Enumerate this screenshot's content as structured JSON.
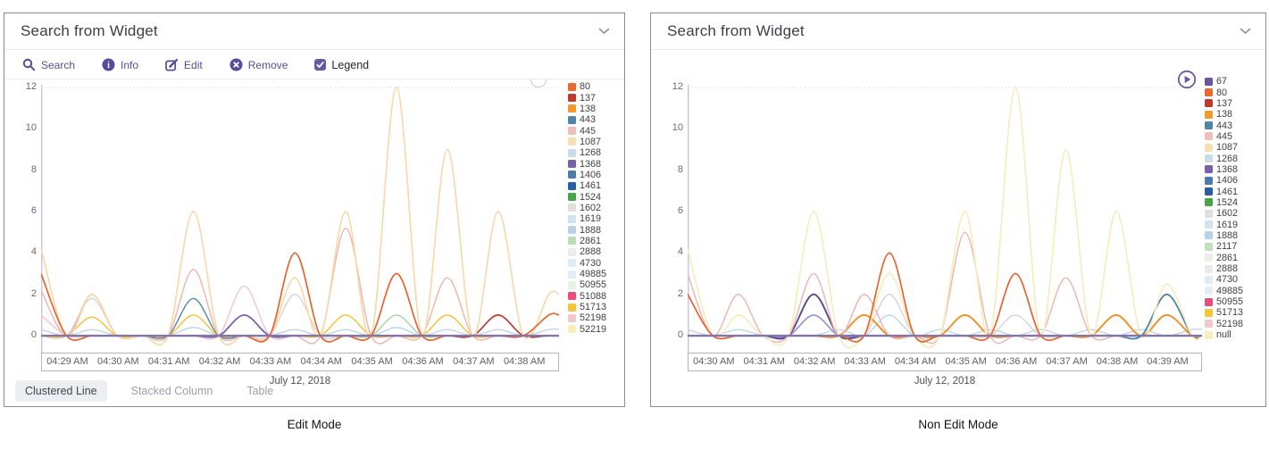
{
  "panels": [
    {
      "title": "Search from Widget",
      "caption": "Edit Mode",
      "collapse_icon": "chevron-down",
      "toolbar": {
        "actions": [
          {
            "id": "search",
            "label": "Search",
            "icon": "search-icon"
          },
          {
            "id": "info",
            "label": "Info",
            "icon": "info-icon"
          },
          {
            "id": "edit",
            "label": "Edit",
            "icon": "edit-icon"
          },
          {
            "id": "remove",
            "label": "Remove",
            "icon": "remove-icon"
          }
        ],
        "legend_toggle": {
          "label": "Legend",
          "checked": true
        }
      },
      "tabs": [
        {
          "label": "Clustered Line",
          "active": true
        },
        {
          "label": "Stacked Column",
          "active": false
        },
        {
          "label": "Table",
          "active": false
        }
      ],
      "legend_items": [
        {
          "label": "80",
          "color": "#ed6a2d"
        },
        {
          "label": "137",
          "color": "#c0392f"
        },
        {
          "label": "138",
          "color": "#f39a2b"
        },
        {
          "label": "443",
          "color": "#4e86a8"
        },
        {
          "label": "445",
          "color": "#f0bfbc"
        },
        {
          "label": "1087",
          "color": "#f8dcb2"
        },
        {
          "label": "1268",
          "color": "#c9dde9"
        },
        {
          "label": "1368",
          "color": "#7a60a8"
        },
        {
          "label": "1406",
          "color": "#4a7cad"
        },
        {
          "label": "1461",
          "color": "#2a5ca8"
        },
        {
          "label": "1524",
          "color": "#46a546"
        },
        {
          "label": "1602",
          "color": "#e2e0dd"
        },
        {
          "label": "1619",
          "color": "#cfe2ee"
        },
        {
          "label": "1888",
          "color": "#b7d3e7"
        },
        {
          "label": "2861",
          "color": "#bcdcb2"
        },
        {
          "label": "2888",
          "color": "#ecece9"
        },
        {
          "label": "4730",
          "color": "#dcebf4"
        },
        {
          "label": "49885",
          "color": "#e4eef6"
        },
        {
          "label": "50955",
          "color": "#eaf0e6"
        },
        {
          "label": "51088",
          "color": "#ea4c7d"
        },
        {
          "label": "51713",
          "color": "#f7c53a"
        },
        {
          "label": "52198",
          "color": "#f2c6ce"
        },
        {
          "label": "52219",
          "color": "#f8eeba"
        }
      ]
    },
    {
      "title": "Search from Widget",
      "caption": "Non Edit Mode",
      "collapse_icon": "chevron-down",
      "legend_items": [
        {
          "label": "67",
          "color": "#6a53a1"
        },
        {
          "label": "80",
          "color": "#ed6a2d"
        },
        {
          "label": "137",
          "color": "#c0392f"
        },
        {
          "label": "138",
          "color": "#f39a2b"
        },
        {
          "label": "443",
          "color": "#4e86a8"
        },
        {
          "label": "445",
          "color": "#f0bfbc"
        },
        {
          "label": "1087",
          "color": "#f8dcb2"
        },
        {
          "label": "1268",
          "color": "#c9dde9"
        },
        {
          "label": "1368",
          "color": "#7a60a8"
        },
        {
          "label": "1406",
          "color": "#4a7cad"
        },
        {
          "label": "1461",
          "color": "#2a5ca8"
        },
        {
          "label": "1524",
          "color": "#46a546"
        },
        {
          "label": "1602",
          "color": "#e2e0dd"
        },
        {
          "label": "1619",
          "color": "#cfe2ee"
        },
        {
          "label": "1888",
          "color": "#b7d3e7"
        },
        {
          "label": "2117",
          "color": "#c3dfb9"
        },
        {
          "label": "2861",
          "color": "#ecece9"
        },
        {
          "label": "2888",
          "color": "#e9e9e6"
        },
        {
          "label": "4730",
          "color": "#dcebf4"
        },
        {
          "label": "49885",
          "color": "#e4eef6"
        },
        {
          "label": "50955",
          "color": "#ea4c7d"
        },
        {
          "label": "51713",
          "color": "#f7c53a"
        },
        {
          "label": "52198",
          "color": "#f2c6ce"
        },
        {
          "label": "null",
          "color": "#f8eeba"
        }
      ]
    }
  ],
  "chart_data": [
    {
      "type": "line",
      "title": "",
      "x_axis_label": "July 12, 2018",
      "x_tick_labels": [
        "04:29 AM",
        "04:30 AM",
        "04:31 AM",
        "04:32 AM",
        "04:33 AM",
        "04:34 AM",
        "04:35 AM",
        "04:36 AM",
        "04:37 AM",
        "04:38 AM"
      ],
      "yticks": [
        0,
        2,
        4,
        6,
        8,
        10,
        12
      ],
      "ylim": [
        0,
        12
      ],
      "grid": "top-dotted-only",
      "legend_position": "right",
      "sample_positions_minutes": [
        -0.5,
        0,
        0.5,
        1,
        1.5,
        2,
        2.5,
        3,
        3.5,
        4,
        4.5,
        5,
        5.5,
        6,
        6.5,
        7,
        7.5,
        8,
        8.5,
        9,
        9.5
      ],
      "baseline": {
        "value": 0,
        "color": "#8474ac"
      },
      "series": [
        {
          "name": "1888",
          "color": "#b7d3e7",
          "width": 1.3,
          "values": [
            0.3,
            0,
            0.3,
            0,
            0,
            0,
            0.4,
            0,
            0,
            0,
            0.3,
            0,
            0.3,
            0,
            0.4,
            0,
            0.3,
            0,
            0.3,
            0,
            0.3
          ]
        },
        {
          "name": "1602",
          "color": "#d8d4d0",
          "width": 1.4,
          "values": [
            0,
            0,
            1.8,
            0,
            0,
            0,
            0,
            0,
            0,
            0,
            2,
            0,
            0,
            0,
            0,
            0,
            0,
            0,
            0,
            0,
            0
          ]
        },
        {
          "name": "52198",
          "color": "#f2c6ce",
          "width": 1.4,
          "values": [
            1,
            0,
            0,
            0,
            0,
            0,
            0,
            0,
            2.4,
            0,
            0,
            0,
            0,
            0,
            0,
            0,
            0,
            0,
            0,
            0,
            0
          ]
        },
        {
          "name": "51713",
          "color": "#f7c53a",
          "width": 1.5,
          "values": [
            0,
            0,
            0.9,
            0,
            0,
            0,
            1,
            0,
            0,
            0,
            0,
            0,
            1,
            0,
            0,
            0,
            1,
            0,
            0,
            0,
            0
          ]
        },
        {
          "name": "2861",
          "color": "#a9d2a0",
          "width": 1.4,
          "values": [
            0,
            0,
            0,
            0,
            0,
            0,
            0,
            0,
            0,
            0,
            0,
            0,
            0,
            0,
            1,
            0,
            0,
            0,
            0,
            0,
            0
          ]
        },
        {
          "name": "443",
          "color": "#4e86a8",
          "width": 1.4,
          "values": [
            0,
            0,
            0,
            0,
            0,
            0,
            1.8,
            0,
            0,
            0,
            0,
            0,
            0,
            0,
            0,
            0,
            0,
            0,
            0,
            0,
            0
          ]
        },
        {
          "name": "1368",
          "color": "#7a60a8",
          "width": 1.8,
          "values": [
            0,
            0,
            0,
            0,
            0,
            0,
            0,
            0,
            1,
            0,
            0,
            0,
            0,
            0,
            0,
            0,
            0,
            0,
            0,
            0,
            0
          ]
        },
        {
          "name": "137",
          "color": "#c0392f",
          "width": 1.7,
          "values": [
            0,
            0,
            0,
            0,
            0,
            0,
            0,
            0,
            0,
            0,
            0,
            0,
            0,
            0,
            0,
            0,
            0,
            0,
            1,
            0,
            0
          ]
        },
        {
          "name": "445",
          "color": "#efb6b2",
          "width": 1.5,
          "values": [
            2.2,
            0,
            2,
            0,
            0,
            0,
            3.2,
            0,
            0,
            0,
            0,
            0,
            5.2,
            0,
            0,
            0,
            2.8,
            0,
            0,
            0,
            0
          ]
        },
        {
          "name": "1087",
          "color": "#f8d9ab",
          "width": 1.7,
          "values": [
            4.2,
            0,
            2,
            0,
            0,
            0,
            6,
            0,
            0,
            0,
            2.8,
            0,
            6,
            0,
            12,
            0,
            9,
            0,
            6,
            0,
            2
          ]
        },
        {
          "name": "80",
          "color": "#e8642e",
          "width": 1.7,
          "values": [
            3,
            0,
            0,
            0,
            0,
            0,
            0,
            0,
            0,
            0,
            4,
            0,
            0,
            0,
            3,
            0,
            0,
            0,
            0,
            0,
            1
          ]
        }
      ]
    },
    {
      "type": "line",
      "title": "",
      "x_axis_label": "July 12, 2018",
      "x_tick_labels": [
        "04:30 AM",
        "04:31 AM",
        "04:32 AM",
        "04:33 AM",
        "04:34 AM",
        "04:35 AM",
        "04:36 AM",
        "04:37 AM",
        "04:38 AM",
        "04:39 AM"
      ],
      "yticks": [
        0,
        2,
        4,
        6,
        8,
        10,
        12
      ],
      "ylim": [
        0,
        12
      ],
      "grid": "top-dotted-only",
      "legend_position": "right",
      "sample_positions_minutes": [
        -0.5,
        0,
        0.5,
        1,
        1.5,
        2,
        2.5,
        3,
        3.5,
        4,
        4.5,
        5,
        5.5,
        6,
        6.5,
        7,
        7.5,
        8,
        8.5,
        9,
        9.5
      ],
      "baseline": {
        "value": 0,
        "color": "#8474ac"
      },
      "series": [
        {
          "name": "1888",
          "color": "#b7d3e7",
          "width": 1.3,
          "values": [
            0.3,
            0,
            0.3,
            0,
            0,
            0,
            0.3,
            0,
            1,
            0,
            0.3,
            0,
            0.3,
            0,
            0.3,
            0,
            0.3,
            0,
            0.3,
            0,
            0.3
          ]
        },
        {
          "name": "52198",
          "color": "#f2c6ce",
          "width": 1.4,
          "values": [
            2,
            0,
            0,
            0,
            0,
            0,
            0,
            0,
            0,
            0,
            0,
            0,
            0,
            0,
            0,
            0,
            0,
            0,
            0,
            0,
            0
          ]
        },
        {
          "name": "1602",
          "color": "#d8d4d0",
          "width": 1.4,
          "values": [
            0,
            0,
            0,
            0,
            0,
            0,
            0,
            0,
            2,
            0,
            0,
            0,
            0,
            1,
            0,
            0,
            0,
            0,
            0,
            0,
            0
          ]
        },
        {
          "name": "138",
          "color": "#f0922a",
          "width": 2.0,
          "values": [
            0,
            0,
            0,
            0,
            0,
            0,
            0,
            1,
            0,
            0,
            0,
            1,
            0,
            0,
            0,
            0,
            0,
            1,
            0,
            1,
            0
          ]
        },
        {
          "name": "1461",
          "color": "#8d94cf",
          "width": 1.6,
          "values": [
            0,
            0,
            0,
            0,
            0,
            1,
            0,
            0,
            0,
            0,
            0,
            0,
            0,
            0,
            0,
            0,
            0,
            0,
            0,
            0,
            0
          ]
        },
        {
          "name": "67",
          "color": "#5d478f",
          "width": 1.9,
          "values": [
            0,
            0,
            0,
            0,
            0,
            2,
            0,
            0,
            0,
            0,
            0,
            0,
            0,
            0,
            0,
            0,
            0,
            0,
            0,
            0,
            0
          ]
        },
        {
          "name": "443",
          "color": "#4e86a8",
          "width": 1.8,
          "values": [
            0,
            0,
            0,
            0,
            0,
            0,
            0,
            0,
            0,
            0,
            0,
            0,
            0,
            0,
            0,
            0,
            0,
            0,
            0,
            2,
            0
          ]
        },
        {
          "name": "445",
          "color": "#efb6b2",
          "width": 1.5,
          "values": [
            3,
            0,
            2,
            0,
            0,
            3,
            0,
            2,
            0,
            0,
            0,
            5,
            0,
            0,
            0,
            2.8,
            0,
            0,
            0,
            0,
            0
          ]
        },
        {
          "name": "null",
          "color": "#f7ecbe",
          "width": 1.7,
          "values": [
            4.2,
            0,
            1,
            0,
            0,
            6,
            0,
            0,
            3,
            0,
            0,
            6,
            0,
            12,
            0,
            9,
            0,
            6,
            0,
            2.5,
            0
          ]
        },
        {
          "name": "80",
          "color": "#e8642e",
          "width": 1.7,
          "values": [
            2,
            0,
            0,
            0,
            0,
            0,
            0,
            0,
            4,
            0,
            0,
            0,
            0,
            3,
            0,
            0,
            0,
            0,
            0,
            0,
            0
          ]
        }
      ]
    }
  ],
  "colors": {
    "accent_purple": "#5b4a9b",
    "zero_line": "#8474ac",
    "axis_line": "#cdc6e2",
    "panel_border": "#8d8d8d",
    "grid_dotted": "#d9d9d9"
  }
}
